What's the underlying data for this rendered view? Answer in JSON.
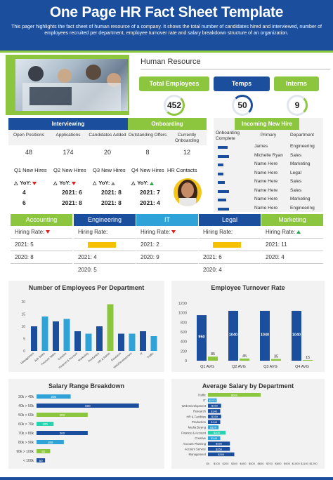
{
  "header": {
    "title": "One Page HR Fact Sheet Template",
    "subtitle": "This pager highlights the fact sheet of human resource of a company. It shows the total number of candidates hired and interviewed, number of employees recruited per department, employee turnover rate and salary breakdown structure of an organization."
  },
  "hr": {
    "title": "Human Resource",
    "stats": [
      {
        "label": "Total Employees",
        "value": "452",
        "color": "#8cc63f"
      },
      {
        "label": "Temps",
        "value": "50",
        "color": "#1b4e9c"
      },
      {
        "label": "Interns",
        "value": "9",
        "color": "#8cc63f"
      }
    ]
  },
  "interview": {
    "interviewing": "Interviewing",
    "onboarding": "Onboarding",
    "cols": [
      "Open Positions",
      "Applications",
      "Candidates Added",
      "Outstanding Offers",
      "Currently Onboarding"
    ],
    "values": [
      "48",
      "174",
      "20",
      "8",
      "12"
    ]
  },
  "incoming": {
    "title": "Incoming New Hire",
    "cols": [
      "Onboarding Complete",
      "Primary",
      "Department"
    ],
    "rows": [
      {
        "name": "James",
        "dept": "Engineering"
      },
      {
        "name": "Michelle Ryan",
        "dept": "Sales"
      },
      {
        "name": "Name Here",
        "dept": "Marketing"
      },
      {
        "name": "Name Here",
        "dept": "Legal"
      },
      {
        "name": "Name Here",
        "dept": "Sales"
      },
      {
        "name": "Name Here",
        "dept": "Sales"
      },
      {
        "name": "Name Here",
        "dept": "Marketing"
      },
      {
        "name": "Name Here",
        "dept": "Engineering"
      }
    ]
  },
  "quarters": [
    {
      "label": "Q1 New Hires",
      "yoy": "YoY:",
      "v1": "4",
      "v2": "6"
    },
    {
      "label": "Q2 New Hires",
      "yoy": "YoY:",
      "v1": "2021: 6",
      "v2": "2021: 8"
    },
    {
      "label": "Q3 New Hires",
      "yoy": "YoY:",
      "v1": "2021: 8",
      "v2": "2021: 8"
    },
    {
      "label": "Q4 New Hires",
      "yoy": "YoY:",
      "v1": "2021: 7",
      "v2": "2021: 4"
    }
  ],
  "hr_contacts": "HR Contacts",
  "departments": [
    {
      "name": "Accounting",
      "rate": "Hiring Rate:",
      "a": "2021: 5",
      "b": "2020: 8",
      "c": ""
    },
    {
      "name": "Engineering",
      "rate": "Hiring Rate:",
      "a": "",
      "b": "2021: 4",
      "c": "2020: 5"
    },
    {
      "name": "IT",
      "rate": "Hiring Rate:",
      "a": "2021: 2",
      "b": "2020: 9",
      "c": ""
    },
    {
      "name": "Legal",
      "rate": "Hiring Rate:",
      "a": "",
      "b": "2021: 6",
      "c": "2020: 4"
    },
    {
      "name": "Marketing",
      "rate": "Hiring Rate:",
      "a": "2021: 11",
      "b": "2020: 4",
      "c": ""
    }
  ],
  "chart_data": [
    {
      "type": "bar",
      "title": "Number of Employees Per Department",
      "categories": [
        "Management",
        "Ads Sales",
        "Account Sales",
        "Creative",
        "Finance & Account",
        "Marketing",
        "Production",
        "HR & Admin",
        "Research",
        "Web/Development",
        "IT",
        "Traffic"
      ],
      "values": [
        10,
        14,
        12,
        13,
        8,
        7,
        10,
        19,
        7,
        7,
        8,
        6
      ],
      "highlight": 7
    },
    {
      "type": "bar",
      "title": "Employee Turnover Rate",
      "categories": [
        "Q1 AVG",
        "Q2 AVG",
        "Q3 AVG",
        "Q4 AVG"
      ],
      "series": [
        {
          "name": "Employees",
          "values": [
            950,
            1040,
            1040,
            1040
          ]
        },
        {
          "name": "Turnover",
          "values": [
            85,
            45,
            35,
            15
          ]
        }
      ],
      "ylim": [
        0,
        1200
      ],
      "yticks": [
        "0",
        "200",
        "400",
        "600",
        "800",
        "1000",
        "1200"
      ]
    },
    {
      "type": "bar",
      "title": "Salary Range Breakdown",
      "categories": [
        "30k > 40k",
        "40k > 50k",
        "50k > 60k",
        "60k > 70k",
        "70k > 80k",
        "80k > 90k",
        "90k > 100k",
        "< 100k"
      ],
      "values": [
        200,
        600,
        300,
        100,
        300,
        160,
        80,
        50
      ]
    },
    {
      "type": "bar",
      "title": "Average Salary by Department",
      "categories": [
        "Traffic",
        "IT",
        "Web Development",
        "Research",
        "HR & Facilities",
        "Production",
        "Media Buying",
        "Finance & Account",
        "Creative",
        "Account Planning",
        "Account Service",
        "Management"
      ],
      "values": [
        600,
        100,
        150,
        140,
        150,
        140,
        120,
        200,
        140,
        250,
        250,
        300
      ],
      "xticks": [
        "$0",
        "$100",
        "$200",
        "$300",
        "$400",
        "$500",
        "$600",
        "$700",
        "$800",
        "$900",
        "$1000",
        "$1100",
        "$1200"
      ],
      "value_labels": [
        "$600",
        "$100",
        "$150",
        "$140",
        "$150",
        "$140",
        "$120",
        "$200",
        "$140",
        "$250",
        "$250",
        "$300"
      ]
    }
  ]
}
